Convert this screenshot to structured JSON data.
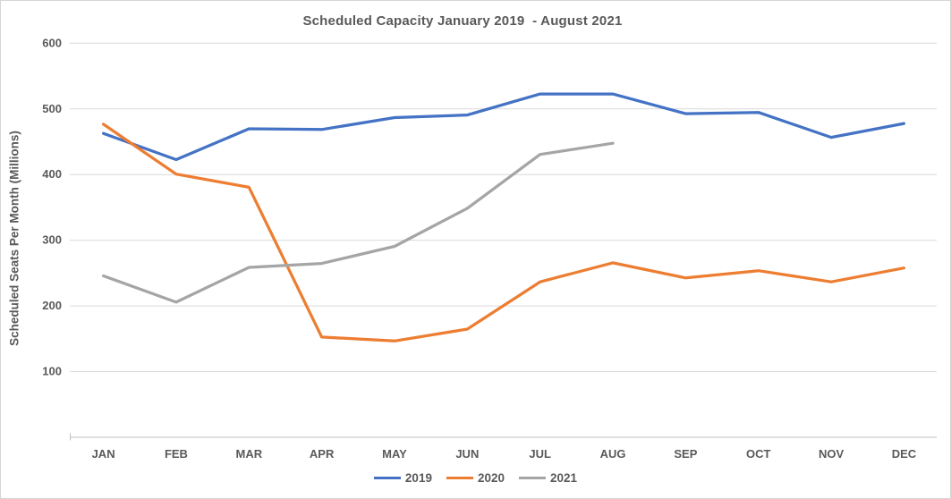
{
  "title": "Scheduled Capacity January 2019  - August 2021",
  "chart_data": {
    "type": "line",
    "title": "Scheduled Capacity January 2019  - August 2021",
    "ylabel": "Scheduled Seats Per Month (Millions)",
    "xlabel": "",
    "categories": [
      "JAN",
      "FEB",
      "MAR",
      "APR",
      "MAY",
      "JUN",
      "JUL",
      "AUG",
      "SEP",
      "OCT",
      "NOV",
      "DEC"
    ],
    "ylim": [
      0,
      600
    ],
    "yticks": [
      100,
      200,
      300,
      400,
      500,
      600
    ],
    "grid": true,
    "legend_position": "bottom",
    "series": [
      {
        "name": "2019",
        "color": "#4472C4",
        "values": [
          462,
          422,
          469,
          468,
          486,
          490,
          522,
          522,
          492,
          494,
          456,
          477
        ]
      },
      {
        "name": "2020",
        "color": "#ED7D31",
        "values": [
          476,
          400,
          380,
          152,
          146,
          164,
          236,
          265,
          242,
          253,
          236,
          257
        ]
      },
      {
        "name": "2021",
        "color": "#A5A5A5",
        "values": [
          245,
          205,
          258,
          264,
          290,
          348,
          430,
          447
        ]
      }
    ]
  },
  "colors": {
    "text": "#595959",
    "gridline": "#D9D9D9",
    "axis_line": "#BFBFBF",
    "background": "#FFFFFF",
    "border": "#D6D6D6"
  }
}
